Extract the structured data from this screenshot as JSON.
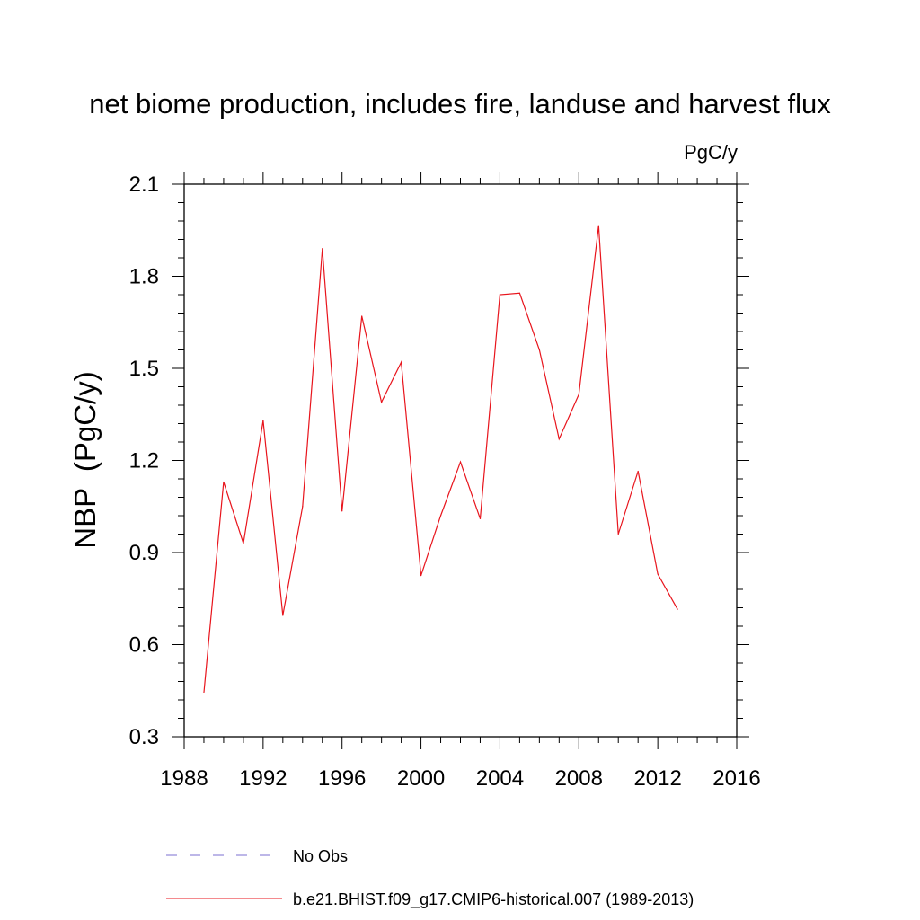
{
  "chart_data": {
    "type": "line",
    "title": "net biome production, includes fire, landuse and harvest flux",
    "units_label": "PgC/y",
    "ylabel": "NBP  (PgC/y)",
    "xlabel": "",
    "xlim": [
      1988,
      2016
    ],
    "ylim": [
      0.3,
      2.1
    ],
    "x_ticks": [
      1988,
      1992,
      1996,
      2000,
      2004,
      2008,
      2012,
      2016
    ],
    "x_tick_labels": [
      "1988",
      "1992",
      "1996",
      "2000",
      "2004",
      "2008",
      "2012",
      "2016"
    ],
    "y_ticks": [
      0.3,
      0.6,
      0.9,
      1.2,
      1.5,
      1.8,
      2.1
    ],
    "y_tick_labels": [
      "0.3",
      "0.6",
      "0.9",
      "1.2",
      "1.5",
      "1.8",
      "2.1"
    ],
    "grid": false,
    "series": [
      {
        "name": "b.e21.BHIST.f09_g17.CMIP6-historical.007 (1989-2013)",
        "color": "#e8141c",
        "style": "solid",
        "x": [
          1989,
          1990,
          1991,
          1992,
          1993,
          1994,
          1995,
          1996,
          1997,
          1998,
          1999,
          2000,
          2001,
          2002,
          2003,
          2004,
          2005,
          2006,
          2007,
          2008,
          2009,
          2010,
          2011,
          2012,
          2013
        ],
        "values": [
          0.445,
          1.13,
          0.93,
          1.33,
          0.695,
          1.05,
          1.89,
          1.035,
          1.67,
          1.39,
          1.52,
          0.825,
          1.02,
          1.195,
          1.01,
          1.74,
          1.745,
          1.56,
          1.27,
          1.415,
          1.965,
          0.96,
          1.165,
          0.83,
          0.715
        ]
      }
    ],
    "legend": [
      {
        "label": "No Obs",
        "color": "#7b6fd0",
        "style": "dashed"
      },
      {
        "label": "b.e21.BHIST.f09_g17.CMIP6-historical.007 (1989-2013)",
        "color": "#e8141c",
        "style": "solid"
      }
    ],
    "legend_position": "bottom"
  }
}
